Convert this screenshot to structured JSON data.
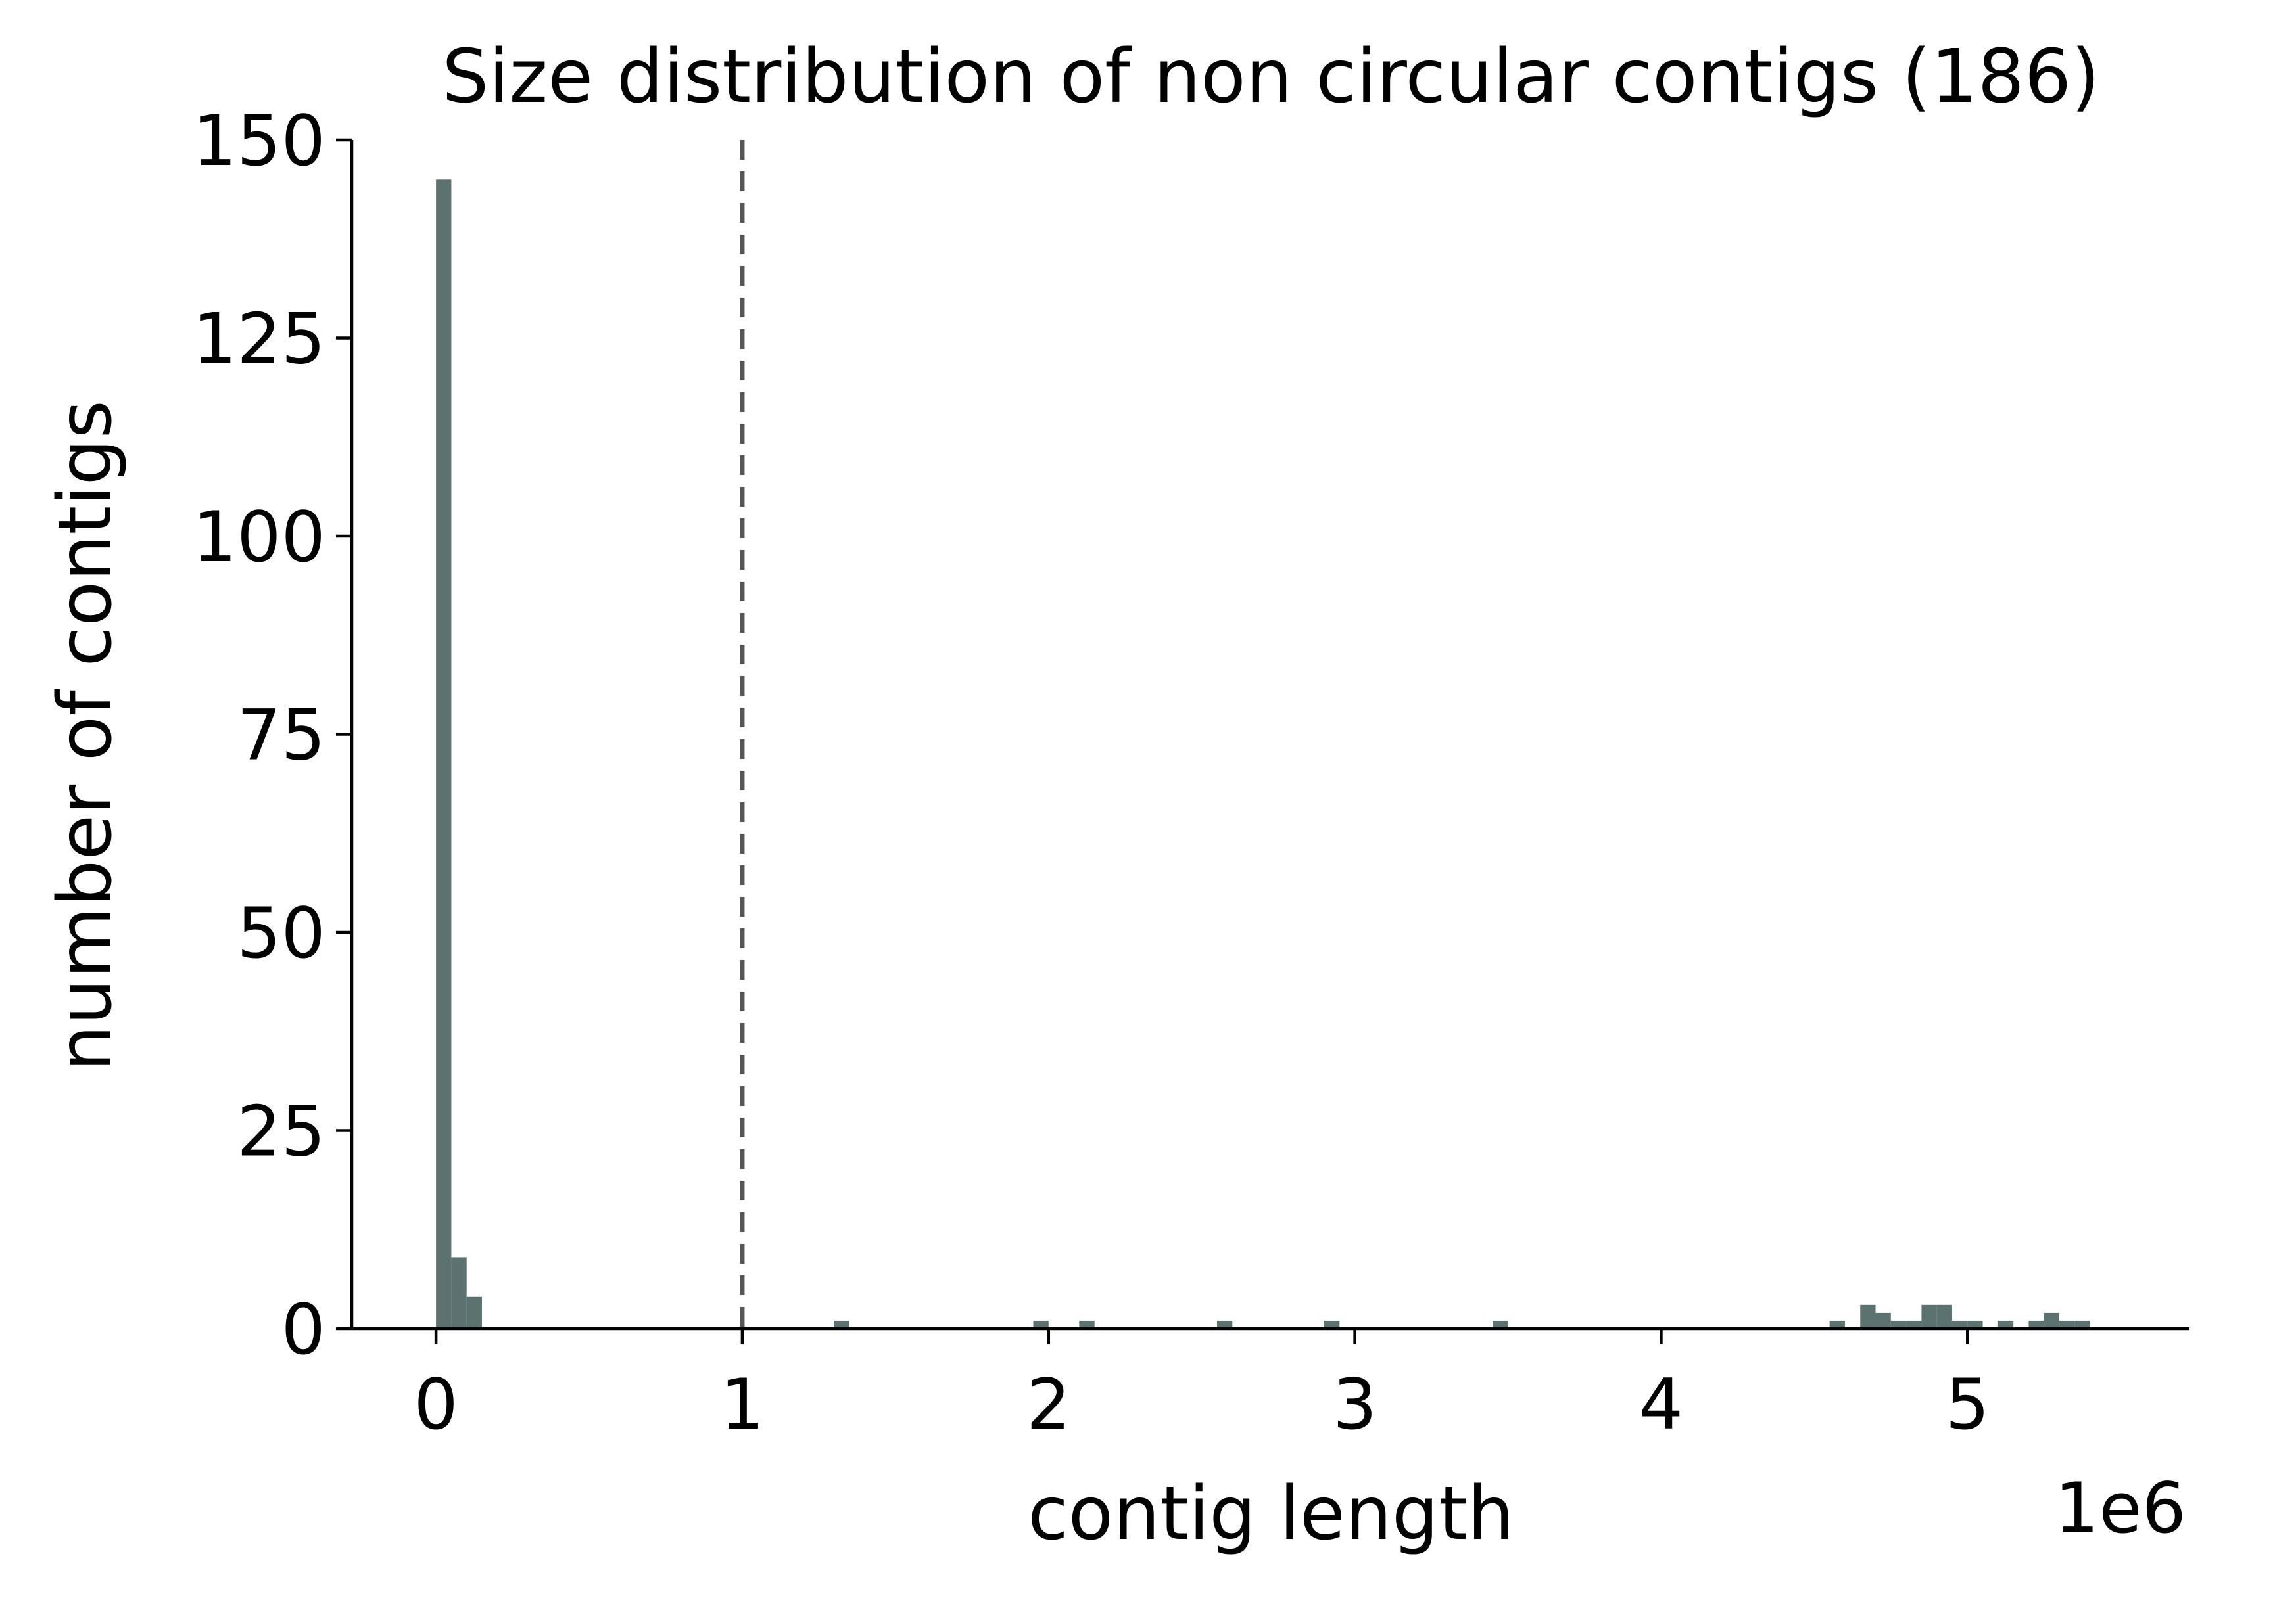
{
  "chart_data": {
    "type": "bar",
    "title": "Size distribution of non circular contigs (186)",
    "xlabel": "contig length",
    "ylabel": "number of contigs",
    "x_offset_label": "1e6",
    "xlim": [
      -275000,
      5725000
    ],
    "ylim": [
      0,
      150
    ],
    "x_ticks": [
      0,
      1,
      2,
      3,
      4,
      5
    ],
    "x_tick_values": [
      0,
      1000000,
      2000000,
      3000000,
      4000000,
      5000000
    ],
    "y_ticks": [
      0,
      25,
      50,
      75,
      100,
      125,
      150
    ],
    "threshold_line_x": 1000000,
    "bin_width": 50000,
    "bars": [
      {
        "x": 0,
        "count": 145
      },
      {
        "x": 50000,
        "count": 9
      },
      {
        "x": 100000,
        "count": 4
      },
      {
        "x": 1300000,
        "count": 1
      },
      {
        "x": 1950000,
        "count": 1
      },
      {
        "x": 2100000,
        "count": 1
      },
      {
        "x": 2550000,
        "count": 1
      },
      {
        "x": 2900000,
        "count": 1
      },
      {
        "x": 3450000,
        "count": 1
      },
      {
        "x": 4550000,
        "count": 1
      },
      {
        "x": 4650000,
        "count": 3
      },
      {
        "x": 4700000,
        "count": 2
      },
      {
        "x": 4750000,
        "count": 1
      },
      {
        "x": 4800000,
        "count": 1
      },
      {
        "x": 4850000,
        "count": 3
      },
      {
        "x": 4900000,
        "count": 3
      },
      {
        "x": 4950000,
        "count": 1
      },
      {
        "x": 5000000,
        "count": 1
      },
      {
        "x": 5100000,
        "count": 1
      },
      {
        "x": 5200000,
        "count": 1
      },
      {
        "x": 5250000,
        "count": 2
      },
      {
        "x": 5300000,
        "count": 1
      },
      {
        "x": 5350000,
        "count": 1
      }
    ],
    "bar_color": "#5b7270",
    "threshold_color": "#555555",
    "grid": false,
    "spines": "left-bottom"
  }
}
